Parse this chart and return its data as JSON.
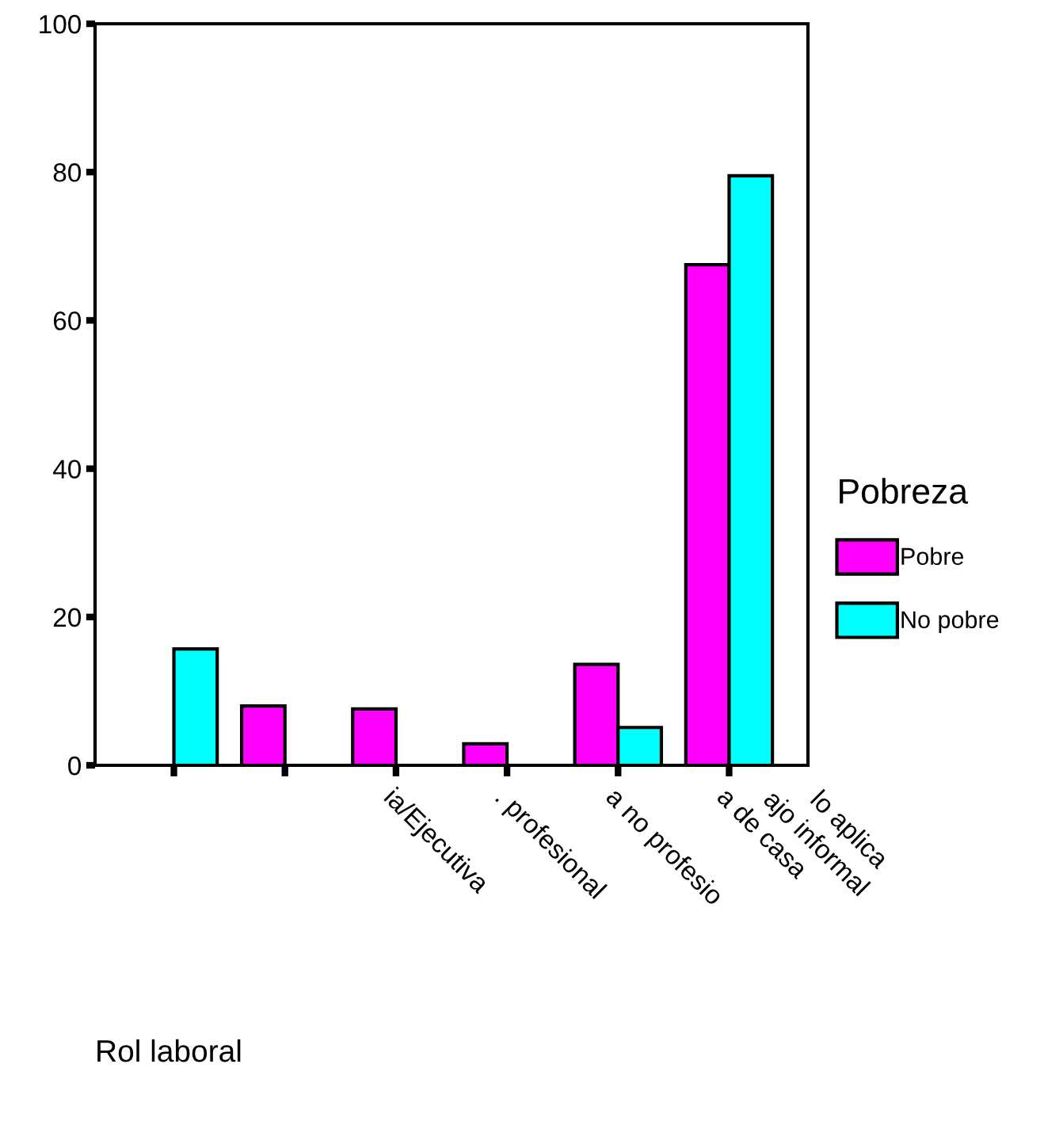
{
  "chart_data": {
    "type": "bar",
    "xlabel": "Rol laboral",
    "legend_title": "Pobreza",
    "legend": "right",
    "categories": [
      null,
      null,
      "ia/Ejecutiva",
      ". profesional",
      "a no profesio",
      "a de casa"
    ],
    "series": [
      {
        "name": "Pobre",
        "color": "#ff00ff",
        "values": [
          null,
          8.0,
          7.6,
          2.9,
          13.6,
          67.5
        ]
      },
      {
        "name": "No pobre",
        "color": "#00ffff",
        "values": [
          15.7,
          null,
          null,
          null,
          5.1,
          79.5
        ]
      }
    ],
    "annotations": [
      "ajo informal",
      "lo aplica"
    ],
    "ylim": [
      0,
      100
    ],
    "yticks": [
      0,
      20,
      40,
      60,
      80,
      100
    ],
    "grid": false
  }
}
